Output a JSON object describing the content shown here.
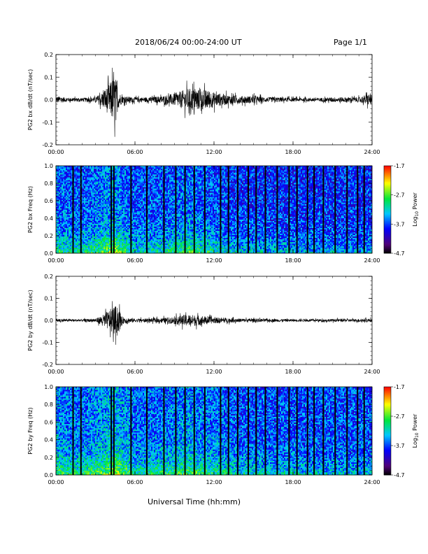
{
  "header": {
    "title": "2018/06/24  00:00-24:00 UT",
    "page": "Page 1/1"
  },
  "x_axis_title": "Universal Time (hh:mm)",
  "chart_data": [
    {
      "type": "line",
      "id": "bx-dbdt",
      "ylabel": "PG2 bx dB/dt (nT/sec)",
      "xlim": [
        0,
        24
      ],
      "ylim": [
        -0.2,
        0.2
      ],
      "yticks": [
        "0.2",
        "0.1",
        "0.0",
        "-0.1",
        "-0.2"
      ],
      "ytick_values": [
        0.2,
        0.1,
        0.0,
        -0.1,
        -0.2
      ],
      "xticks": [
        "00:00",
        "06:00",
        "12:00",
        "18:00",
        "24:00"
      ],
      "xtick_values": [
        0,
        6,
        12,
        18,
        24
      ],
      "envelope_hours": [
        0,
        1,
        2,
        3,
        3.5,
        4,
        4.3,
        4.5,
        4.7,
        5,
        6,
        7,
        8,
        9,
        9.5,
        10,
        10.5,
        11,
        11.5,
        12,
        13,
        14,
        15,
        16,
        17,
        18,
        19,
        20,
        21,
        22,
        23,
        23.8,
        24
      ],
      "envelope_amplitude": [
        0.03,
        0.015,
        0.015,
        0.02,
        0.06,
        0.12,
        0.17,
        0.2,
        0.08,
        0.03,
        0.02,
        0.02,
        0.03,
        0.05,
        0.07,
        0.09,
        0.09,
        0.08,
        0.08,
        0.06,
        0.04,
        0.03,
        0.03,
        0.02,
        0.02,
        0.015,
        0.015,
        0.015,
        0.02,
        0.02,
        0.02,
        0.05,
        0.03
      ]
    },
    {
      "type": "heatmap",
      "id": "bx-freq",
      "ylabel": "PG2 bx Freq (Hz)",
      "xlim": [
        0,
        24
      ],
      "ylim": [
        0,
        1.0
      ],
      "yticks": [
        "1.0",
        "0.8",
        "0.6",
        "0.4",
        "0.2",
        "0.0"
      ],
      "ytick_values": [
        1.0,
        0.8,
        0.6,
        0.4,
        0.2,
        0.0
      ],
      "xticks": [
        "00:00",
        "06:00",
        "12:00",
        "18:00",
        "24:00"
      ],
      "xtick_values": [
        0,
        6,
        12,
        18,
        24
      ],
      "colorbar_label": "Log10 Power",
      "colorbar_ticks": [
        "-1.7",
        "-2.7",
        "-3.7",
        "-4.7"
      ],
      "colorbar_range": [
        -4.7,
        -1.7
      ],
      "gap_hours": [
        1.3,
        1.9,
        4.2,
        4.4,
        5.7,
        6.9,
        8.2,
        9.1,
        9.8,
        10.5,
        11.3,
        12.5,
        13.1,
        13.8,
        14.6,
        15.2,
        15.9,
        16.8,
        17.7,
        18.3,
        19.1,
        19.6,
        20.3,
        21.2,
        22.1,
        22.9,
        23.4
      ],
      "log_power_profile": {
        "hours": [
          0,
          2,
          4,
          4.5,
          6,
          8,
          10,
          12,
          14,
          18,
          24
        ],
        "low_freq_level": [
          -2.9,
          -3.0,
          -2.6,
          -2.4,
          -3.1,
          -3.0,
          -2.7,
          -3.0,
          -3.2,
          -3.3,
          -3.4
        ],
        "high_freq_level": [
          -3.6,
          -3.7,
          -3.5,
          -3.5,
          -3.7,
          -3.7,
          -3.6,
          -3.7,
          -3.8,
          -3.8,
          -3.8
        ]
      }
    },
    {
      "type": "line",
      "id": "by-dbdt",
      "ylabel": "PG2 by dB/dt (nT/sec)",
      "xlim": [
        0,
        24
      ],
      "ylim": [
        -0.2,
        0.2
      ],
      "yticks": [
        "0.2",
        "0.1",
        "0.0",
        "-0.1",
        "-0.2"
      ],
      "ytick_values": [
        0.2,
        0.1,
        0.0,
        -0.1,
        -0.2
      ],
      "xticks": [
        "00:00",
        "06:00",
        "12:00",
        "18:00",
        "24:00"
      ],
      "xtick_values": [
        0,
        6,
        12,
        18,
        24
      ],
      "envelope_hours": [
        0,
        1,
        2,
        3,
        3.5,
        4,
        4.3,
        4.5,
        4.8,
        5,
        6,
        7,
        8,
        9,
        9.5,
        10,
        10.5,
        11,
        11.5,
        12,
        13,
        14,
        15,
        16,
        17,
        18,
        19,
        20,
        21,
        22,
        23,
        24
      ],
      "envelope_amplitude": [
        0.015,
        0.01,
        0.01,
        0.015,
        0.04,
        0.08,
        0.11,
        0.12,
        0.1,
        0.03,
        0.015,
        0.015,
        0.02,
        0.03,
        0.04,
        0.05,
        0.045,
        0.04,
        0.03,
        0.025,
        0.02,
        0.015,
        0.015,
        0.012,
        0.012,
        0.01,
        0.01,
        0.01,
        0.012,
        0.012,
        0.012,
        0.015
      ]
    },
    {
      "type": "heatmap",
      "id": "by-freq",
      "ylabel": "PG2 by Freq (Hz)",
      "xlim": [
        0,
        24
      ],
      "ylim": [
        0,
        1.0
      ],
      "yticks": [
        "1.0",
        "0.8",
        "0.6",
        "0.4",
        "0.2",
        "0.0"
      ],
      "ytick_values": [
        1.0,
        0.8,
        0.6,
        0.4,
        0.2,
        0.0
      ],
      "xticks": [
        "00:00",
        "06:00",
        "12:00",
        "18:00",
        "24:00"
      ],
      "xtick_values": [
        0,
        6,
        12,
        18,
        24
      ],
      "colorbar_label": "Log10 Power",
      "colorbar_ticks": [
        "-1.7",
        "-2.7",
        "-3.7",
        "-4.7"
      ],
      "colorbar_range": [
        -4.7,
        -1.7
      ],
      "gap_hours": [
        1.3,
        1.9,
        4.2,
        4.4,
        5.7,
        6.9,
        8.2,
        9.1,
        9.8,
        10.5,
        11.3,
        12.5,
        13.1,
        13.8,
        14.6,
        15.2,
        15.9,
        16.8,
        17.7,
        18.3,
        19.1,
        19.6,
        20.3,
        21.2,
        22.1,
        22.9,
        23.4
      ],
      "log_power_profile": {
        "hours": [
          0,
          2,
          4,
          4.5,
          6,
          8,
          10,
          12,
          14,
          18,
          24
        ],
        "low_freq_level": [
          -2.8,
          -2.9,
          -2.6,
          -2.3,
          -3.0,
          -2.9,
          -2.7,
          -2.9,
          -3.1,
          -3.2,
          -3.3
        ],
        "high_freq_level": [
          -3.5,
          -3.6,
          -3.4,
          -3.4,
          -3.6,
          -3.6,
          -3.5,
          -3.6,
          -3.7,
          -3.7,
          -3.7
        ]
      }
    }
  ]
}
